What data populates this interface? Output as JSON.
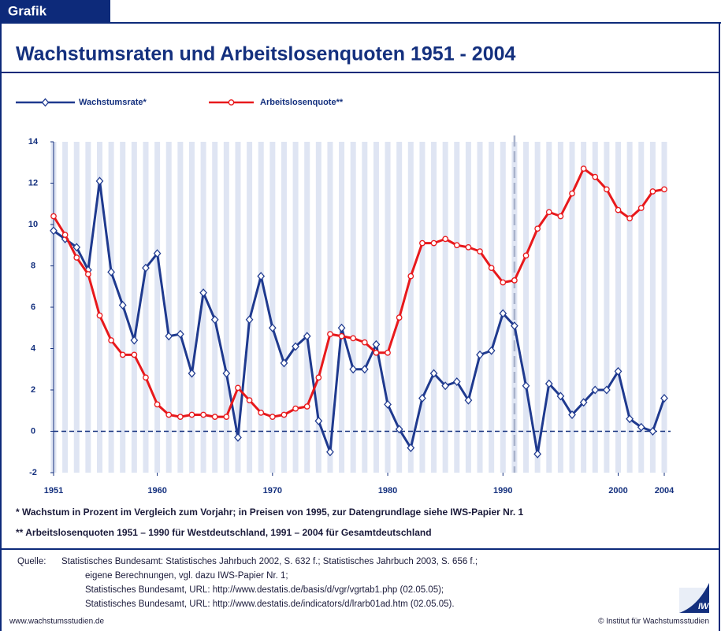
{
  "header": "Grafik",
  "chart_data": {
    "type": "line",
    "title": "Wachstumsraten und Arbeitslosenquoten 1951 - 2004",
    "x": [
      1951,
      1952,
      1953,
      1954,
      1955,
      1956,
      1957,
      1958,
      1959,
      1960,
      1961,
      1962,
      1963,
      1964,
      1965,
      1966,
      1967,
      1968,
      1969,
      1970,
      1971,
      1972,
      1973,
      1974,
      1975,
      1976,
      1977,
      1978,
      1979,
      1980,
      1981,
      1982,
      1983,
      1984,
      1985,
      1986,
      1987,
      1988,
      1989,
      1990,
      1991,
      1992,
      1993,
      1994,
      1995,
      1996,
      1997,
      1998,
      1999,
      2000,
      2001,
      2002,
      2003,
      2004
    ],
    "series": [
      {
        "name": "Wachstumsrate*",
        "color": "#1f3a8f",
        "marker": "diamond",
        "values": [
          9.7,
          9.3,
          8.9,
          7.8,
          12.1,
          7.7,
          6.1,
          4.4,
          7.9,
          8.6,
          4.6,
          4.7,
          2.8,
          6.7,
          5.4,
          2.8,
          -0.3,
          5.4,
          7.5,
          5.0,
          3.3,
          4.1,
          4.6,
          0.5,
          -1.0,
          5.0,
          3.0,
          3.0,
          4.2,
          1.3,
          0.1,
          -0.8,
          1.6,
          2.8,
          2.2,
          2.4,
          1.5,
          3.7,
          3.9,
          5.7,
          5.1,
          2.2,
          -1.1,
          2.3,
          1.7,
          0.8,
          1.4,
          2.0,
          2.0,
          2.9,
          0.6,
          0.2,
          0.0,
          1.6
        ]
      },
      {
        "name": "Arbeitslosenquote**",
        "color": "#e8191c",
        "marker": "circle",
        "values": [
          10.4,
          9.5,
          8.4,
          7.6,
          5.6,
          4.4,
          3.7,
          3.7,
          2.6,
          1.3,
          0.8,
          0.7,
          0.8,
          0.8,
          0.7,
          0.7,
          2.1,
          1.5,
          0.9,
          0.7,
          0.8,
          1.1,
          1.2,
          2.6,
          4.7,
          4.6,
          4.5,
          4.3,
          3.8,
          3.8,
          5.5,
          7.5,
          9.1,
          9.1,
          9.3,
          9.0,
          8.9,
          8.7,
          7.9,
          7.2,
          7.3,
          8.5,
          9.8,
          10.6,
          10.4,
          11.5,
          12.7,
          12.3,
          11.7,
          10.7,
          10.3,
          10.8,
          11.6,
          11.7
        ]
      }
    ],
    "xlim": [
      1951,
      2004
    ],
    "xticks": [
      1951,
      1960,
      1970,
      1980,
      1990,
      2000,
      2004
    ],
    "ylim": [
      -2,
      14
    ],
    "yticks": [
      -2,
      0,
      2,
      4,
      6,
      8,
      10,
      12,
      14
    ],
    "legend": "top-left",
    "zero_line": true,
    "divider_x": 1991
  },
  "footnotes": [
    "* Wachstum in Prozent im Vergleich zum Vorjahr; in Preisen von 1995, zur Datengrundlage siehe IWS-Papier Nr. 1",
    "** Arbeitslosenquoten 1951 – 1990 für Westdeutschland, 1991 – 2004  für Gesamtdeutschland"
  ],
  "sources": {
    "label": "Quelle:",
    "lines": [
      "Statistisches Bundesamt: Statistisches Jahrbuch 2002, S. 632 f.; Statistisches Jahrbuch 2003, S. 656 f.;",
      "eigene Berechnungen, vgl. dazu IWS-Papier Nr. 1;",
      "Statistisches Bundesamt, URL: http://www.destatis.de/basis/d/vgr/vgrtab1.php (02.05.05);",
      "Statistisches Bundesamt, URL: http://www.destatis.de/indicators/d/lrarb01ad.htm (02.05.05)."
    ]
  },
  "footer": {
    "left": "www.wachstumsstudien.de",
    "right": "© Institut für Wachstumsstudien"
  },
  "logo": "IWS"
}
